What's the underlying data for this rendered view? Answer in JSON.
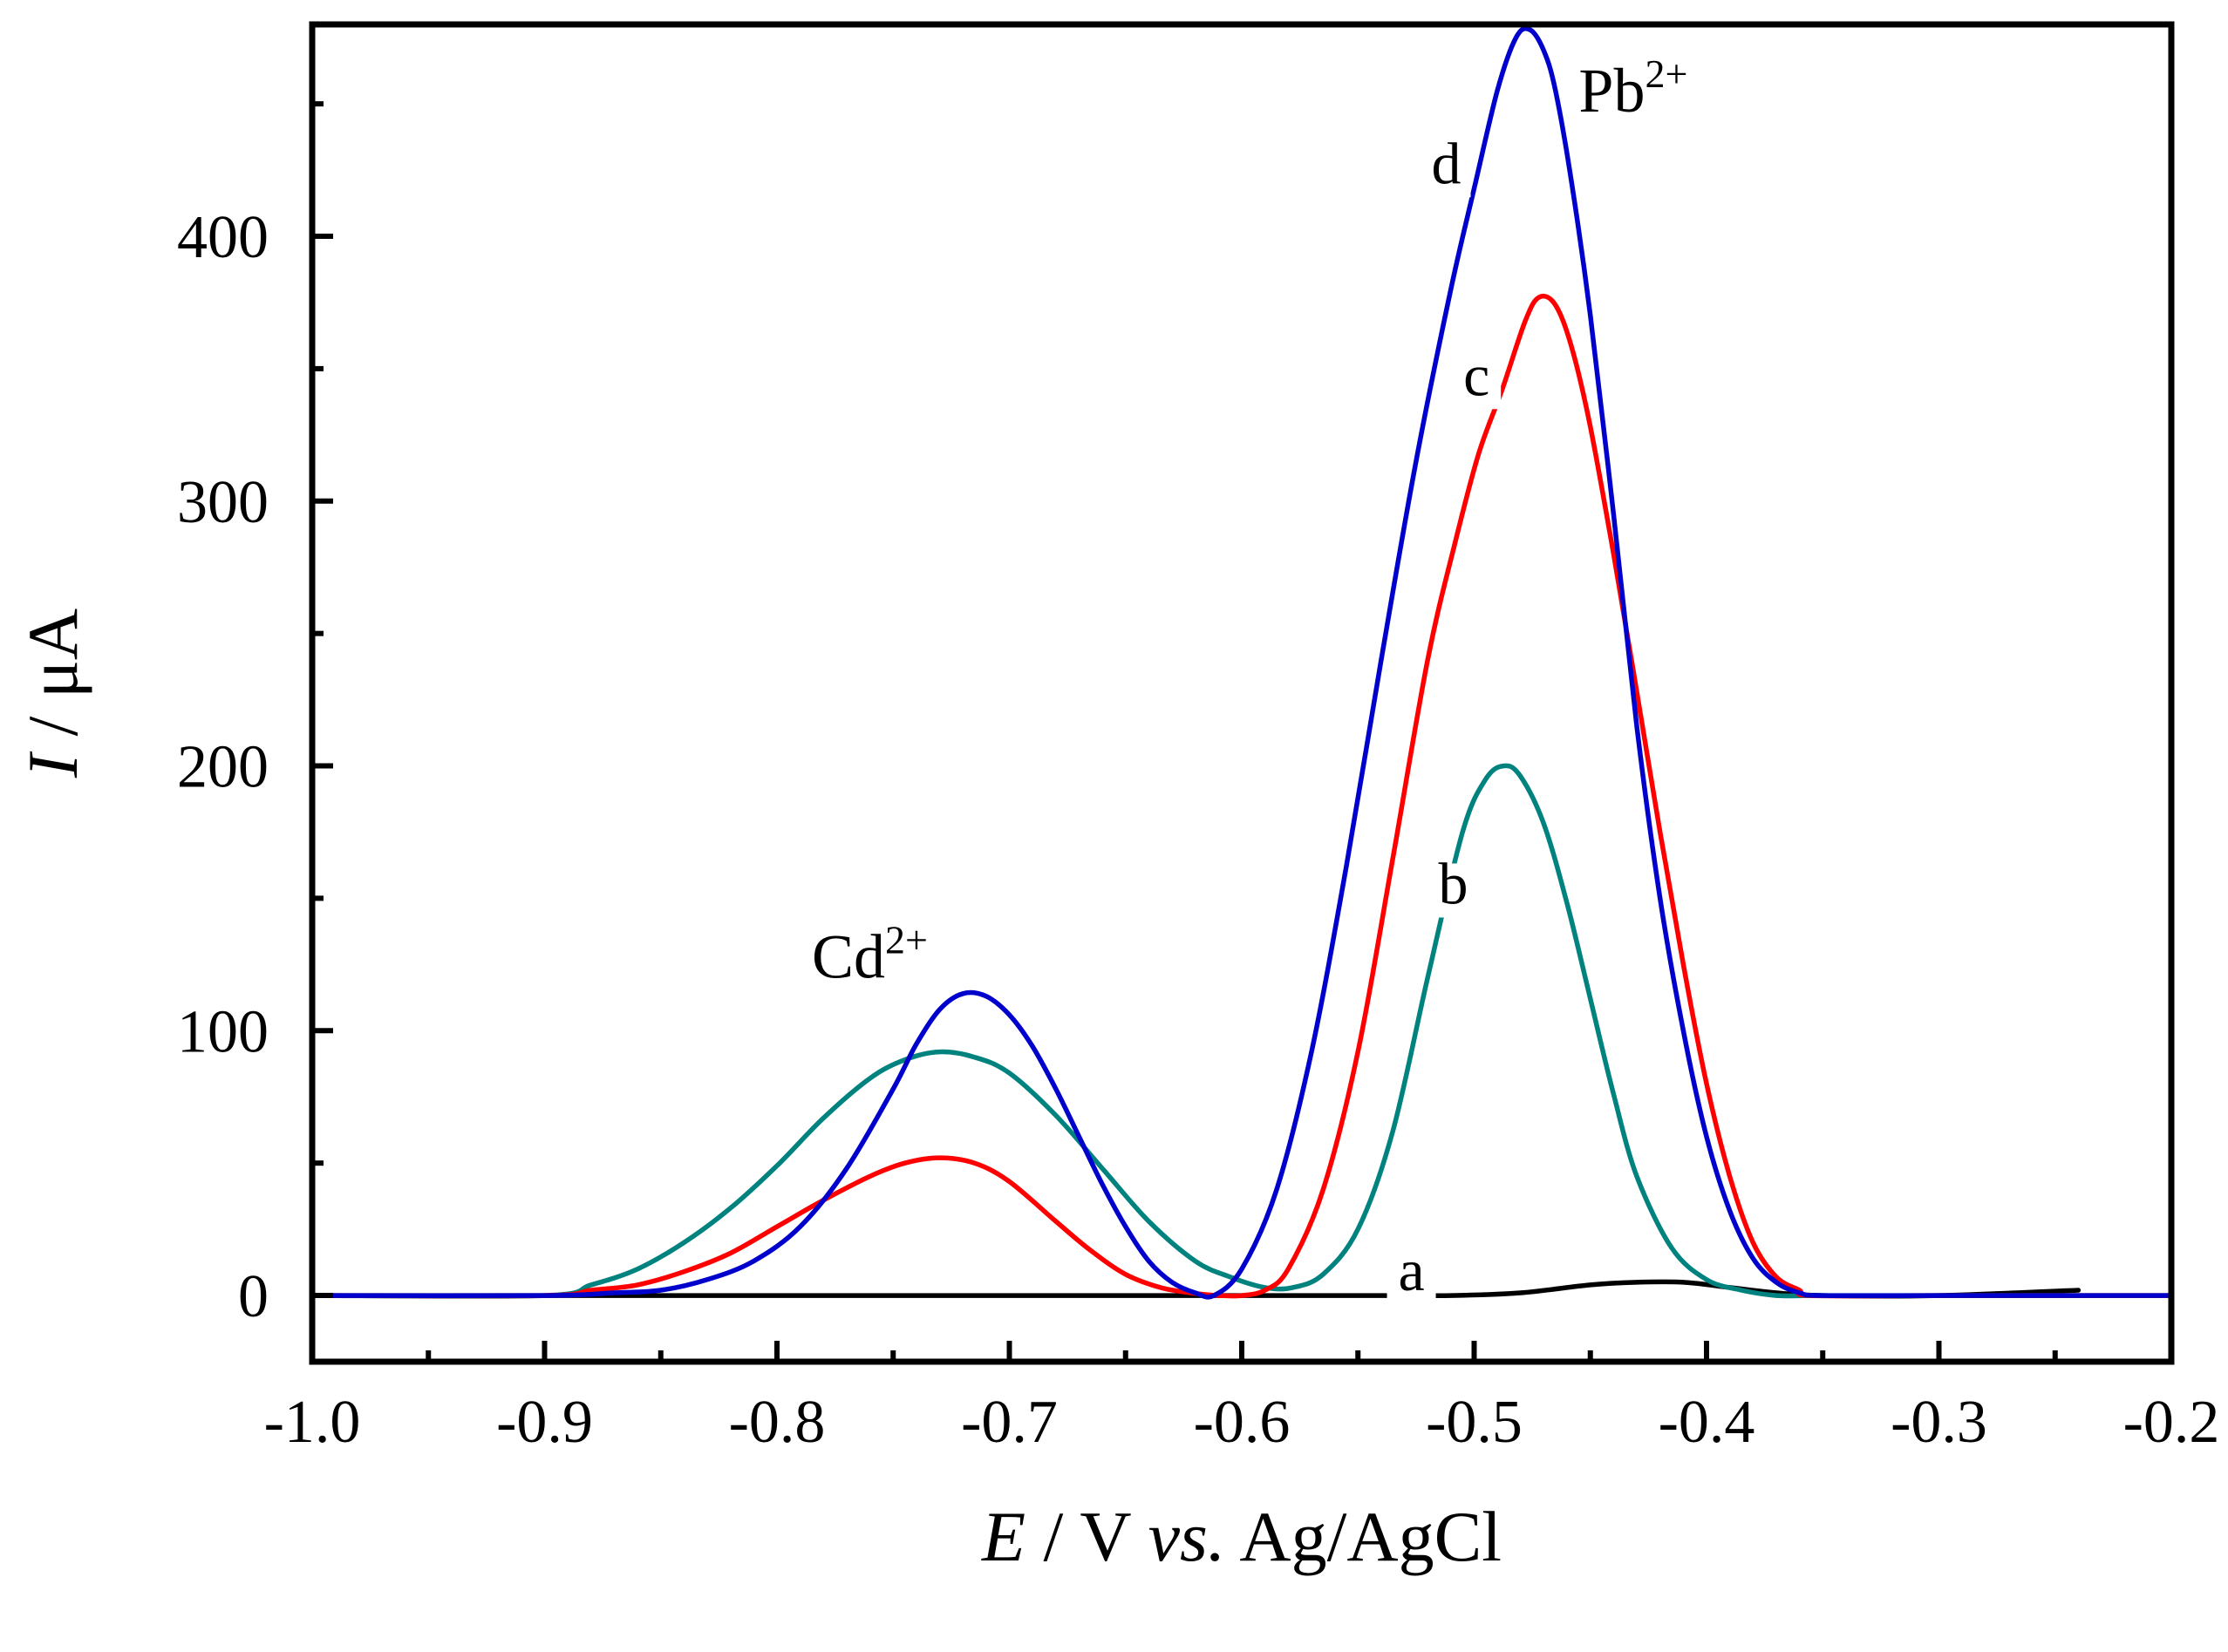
{
  "chart_data": {
    "type": "line",
    "title": "",
    "xlabel": {
      "var": "E",
      "rest": " / V ",
      "italic": "vs.",
      "ref": " Ag/AgCl"
    },
    "ylabel": {
      "var": "I",
      "rest": " / μA"
    },
    "xlim": [
      -1.0,
      -0.2
    ],
    "ylim": [
      -25,
      480
    ],
    "x_ticks": [
      -1.0,
      -0.9,
      -0.8,
      -0.7,
      -0.6,
      -0.5,
      -0.4,
      -0.3,
      -0.2
    ],
    "x_tick_labels": [
      "-1.0",
      "-0.9",
      "-0.8",
      "-0.7",
      "-0.6",
      "-0.5",
      "-0.4",
      "-0.3",
      "-0.2"
    ],
    "y_ticks": [
      0,
      100,
      200,
      300,
      400
    ],
    "y_tick_labels": [
      "0",
      "100",
      "200",
      "300",
      "400"
    ],
    "grid": false,
    "annotations": [
      {
        "name": "cd-peak-annotation",
        "base": "Cd",
        "sup": "2+",
        "x": -0.785,
        "y": 120
      },
      {
        "name": "pb-peak-annotation",
        "base": "Pb",
        "sup": "2+",
        "x": -0.455,
        "y": 447
      }
    ],
    "series": [
      {
        "name": "a",
        "color": "#000000",
        "label_pos": {
          "x": -0.527,
          "y": 2
        },
        "x": [
          -1.0,
          -0.9,
          -0.8,
          -0.7,
          -0.6,
          -0.54,
          -0.51,
          -0.48,
          -0.45,
          -0.43,
          -0.41,
          -0.39,
          -0.37,
          -0.35,
          -0.3,
          -0.24
        ],
        "y": [
          0,
          0,
          0,
          0,
          0,
          0,
          0,
          1,
          4,
          5,
          5,
          3,
          1,
          0,
          0,
          2
        ]
      },
      {
        "name": "b",
        "color": "#00827F",
        "label_pos": {
          "x": -0.509,
          "y": 148
        },
        "x": [
          -1.0,
          -0.9,
          -0.88,
          -0.86,
          -0.84,
          -0.82,
          -0.8,
          -0.78,
          -0.76,
          -0.745,
          -0.73,
          -0.715,
          -0.7,
          -0.68,
          -0.66,
          -0.64,
          -0.62,
          -0.605,
          -0.59,
          -0.578,
          -0.565,
          -0.55,
          -0.535,
          -0.52,
          -0.505,
          -0.495,
          -0.487,
          -0.48,
          -0.47,
          -0.46,
          -0.45,
          -0.44,
          -0.43,
          -0.415,
          -0.4,
          -0.385,
          -0.37,
          -0.355,
          -0.35,
          -0.3,
          -0.2
        ],
        "y": [
          0,
          0,
          4,
          10,
          20,
          33,
          49,
          67,
          82,
          89,
          92,
          90,
          84,
          68,
          48,
          28,
          13,
          7,
          3,
          3,
          8,
          25,
          62,
          120,
          175,
          195,
          200,
          196,
          178,
          148,
          112,
          76,
          45,
          18,
          6,
          2,
          0,
          0,
          0,
          0,
          0
        ]
      },
      {
        "name": "c",
        "color": "#FF0000",
        "label_pos": {
          "x": -0.499,
          "y": 340
        },
        "x": [
          -1.0,
          -0.9,
          -0.88,
          -0.86,
          -0.84,
          -0.82,
          -0.8,
          -0.78,
          -0.76,
          -0.745,
          -0.73,
          -0.715,
          -0.7,
          -0.68,
          -0.665,
          -0.65,
          -0.635,
          -0.622,
          -0.61,
          -0.6,
          -0.59,
          -0.58,
          -0.565,
          -0.55,
          -0.535,
          -0.52,
          -0.508,
          -0.498,
          -0.488,
          -0.478,
          -0.472,
          -0.465,
          -0.458,
          -0.45,
          -0.44,
          -0.43,
          -0.42,
          -0.41,
          -0.4,
          -0.39,
          -0.38,
          -0.37,
          -0.36,
          -0.355,
          -0.3,
          -0.2
        ],
        "y": [
          0,
          0,
          2,
          4,
          9,
          16,
          26,
          36,
          45,
          50,
          52,
          50,
          43,
          28,
          17,
          8,
          3,
          1,
          0,
          0,
          2,
          10,
          40,
          92,
          165,
          240,
          285,
          318,
          342,
          368,
          377,
          374,
          358,
          328,
          280,
          228,
          175,
          125,
          80,
          45,
          20,
          7,
          2,
          0,
          0,
          0
        ]
      },
      {
        "name": "d",
        "color": "#0000CD",
        "label_pos": {
          "x": -0.512,
          "y": 420
        },
        "x": [
          -1.0,
          -0.9,
          -0.87,
          -0.85,
          -0.83,
          -0.81,
          -0.79,
          -0.77,
          -0.75,
          -0.74,
          -0.73,
          -0.72,
          -0.71,
          -0.7,
          -0.69,
          -0.68,
          -0.67,
          -0.66,
          -0.65,
          -0.64,
          -0.63,
          -0.62,
          -0.612,
          -0.6,
          -0.585,
          -0.57,
          -0.555,
          -0.54,
          -0.525,
          -0.51,
          -0.5,
          -0.49,
          -0.482,
          -0.476,
          -0.47,
          -0.465,
          -0.458,
          -0.45,
          -0.44,
          -0.43,
          -0.42,
          -0.41,
          -0.4,
          -0.39,
          -0.38,
          -0.37,
          -0.36,
          -0.35,
          -0.3,
          -0.2
        ],
        "y": [
          0,
          0,
          1,
          2,
          6,
          13,
          26,
          48,
          78,
          95,
          108,
          114,
          113,
          106,
          94,
          78,
          60,
          42,
          26,
          13,
          5,
          1,
          0,
          10,
          40,
          92,
          162,
          240,
          315,
          380,
          418,
          455,
          475,
          478,
          470,
          455,
          420,
          370,
          295,
          215,
          150,
          100,
          60,
          32,
          14,
          5,
          1,
          0,
          0,
          0
        ]
      }
    ]
  }
}
